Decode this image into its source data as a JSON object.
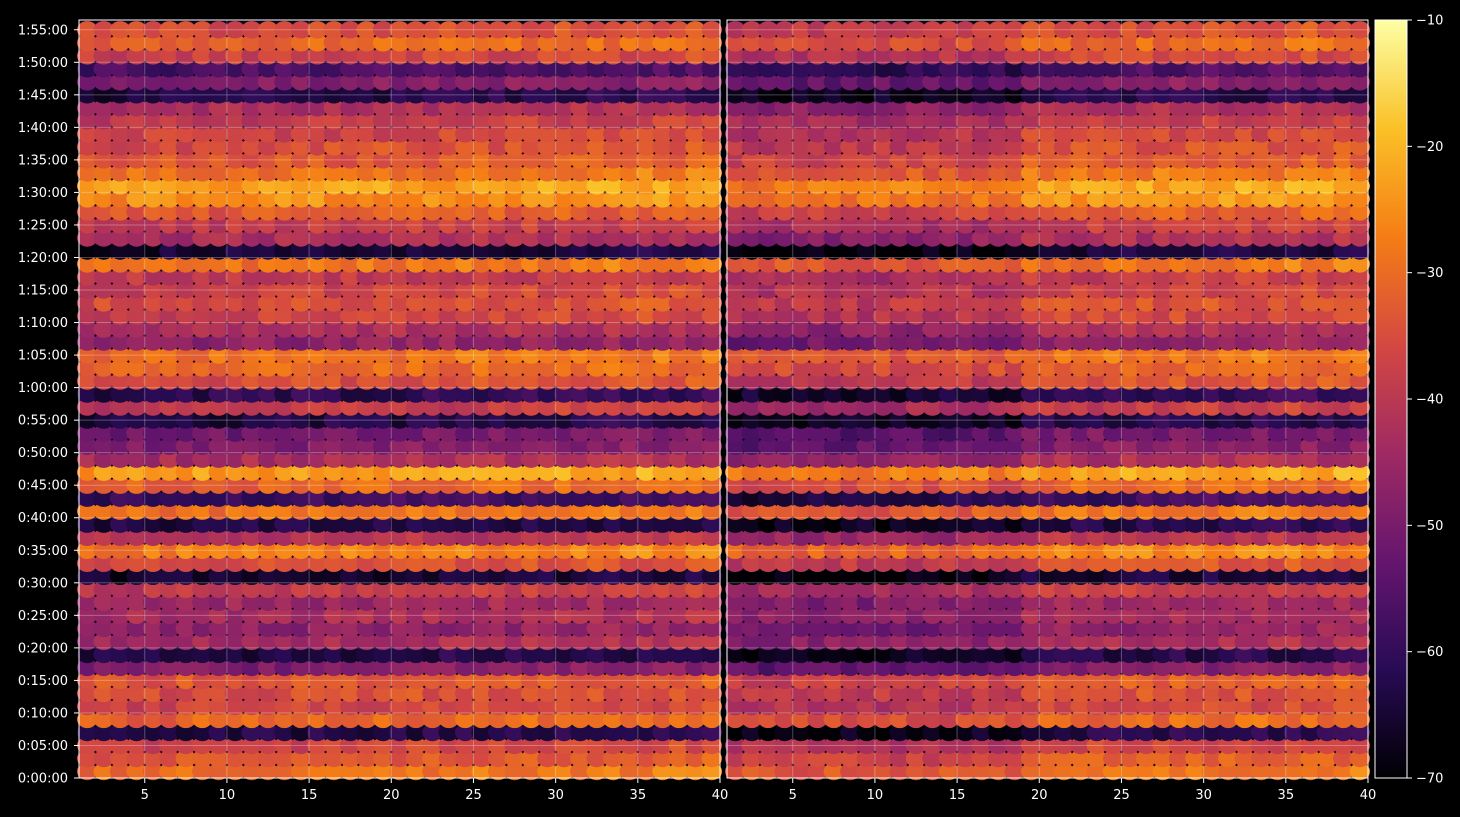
{
  "chart_data": {
    "type": "heatmap",
    "title": "",
    "panels": [
      {
        "name": "",
        "x_ticks": [
          "5",
          "10",
          "15",
          "20",
          "25",
          "30",
          "35",
          "40"
        ],
        "xlim": [
          1,
          40
        ]
      },
      {
        "name": "",
        "x_ticks": [
          "5",
          "10",
          "15",
          "20",
          "25",
          "30",
          "35",
          "40"
        ],
        "xlim": [
          1,
          40
        ]
      }
    ],
    "y_ticks": [
      "0:00:00",
      "0:05:00",
      "0:10:00",
      "0:15:00",
      "0:20:00",
      "0:25:00",
      "0:30:00",
      "0:35:00",
      "0:40:00",
      "0:45:00",
      "0:50:00",
      "0:55:00",
      "1:00:00",
      "1:05:00",
      "1:10:00",
      "1:15:00",
      "1:20:00",
      "1:25:00",
      "1:30:00",
      "1:35:00",
      "1:40:00",
      "1:45:00",
      "1:50:00",
      "1:55:00"
    ],
    "ylim_minutes": [
      0,
      116.5
    ],
    "colorbar": {
      "colormap": "inferno",
      "range": [
        -70,
        -10
      ],
      "ticks": [
        "−70",
        "−60",
        "−50",
        "−40",
        "−30",
        "−20",
        "−10"
      ]
    },
    "grid": true,
    "row_profile_dB": [
      {
        "t_min": 1,
        "value": -30
      },
      {
        "t_min": 3,
        "value": -34
      },
      {
        "t_min": 5,
        "value": -38
      },
      {
        "t_min": 7,
        "value": -64
      },
      {
        "t_min": 9,
        "value": -32
      },
      {
        "t_min": 11,
        "value": -38
      },
      {
        "t_min": 13,
        "value": -36
      },
      {
        "t_min": 15,
        "value": -34
      },
      {
        "t_min": 17,
        "value": -50
      },
      {
        "t_min": 19,
        "value": -64
      },
      {
        "t_min": 21,
        "value": -44
      },
      {
        "t_min": 23,
        "value": -48
      },
      {
        "t_min": 25,
        "value": -44
      },
      {
        "t_min": 27,
        "value": -46
      },
      {
        "t_min": 29,
        "value": -40
      },
      {
        "t_min": 31,
        "value": -66
      },
      {
        "t_min": 33,
        "value": -36
      },
      {
        "t_min": 35,
        "value": -28
      },
      {
        "t_min": 37,
        "value": -42
      },
      {
        "t_min": 39,
        "value": -64
      },
      {
        "t_min": 41,
        "value": -30
      },
      {
        "t_min": 43,
        "value": -60
      },
      {
        "t_min": 45,
        "value": -32
      },
      {
        "t_min": 47,
        "value": -24
      },
      {
        "t_min": 49,
        "value": -44
      },
      {
        "t_min": 51,
        "value": -50
      },
      {
        "t_min": 53,
        "value": -52
      },
      {
        "t_min": 55,
        "value": -64
      },
      {
        "t_min": 57,
        "value": -40
      },
      {
        "t_min": 59,
        "value": -62
      },
      {
        "t_min": 61,
        "value": -36
      },
      {
        "t_min": 63,
        "value": -32
      },
      {
        "t_min": 65,
        "value": -30
      },
      {
        "t_min": 67,
        "value": -48
      },
      {
        "t_min": 69,
        "value": -44
      },
      {
        "t_min": 71,
        "value": -38
      },
      {
        "t_min": 73,
        "value": -36
      },
      {
        "t_min": 75,
        "value": -38
      },
      {
        "t_min": 77,
        "value": -40
      },
      {
        "t_min": 79,
        "value": -30
      },
      {
        "t_min": 81,
        "value": -66
      },
      {
        "t_min": 83,
        "value": -44
      },
      {
        "t_min": 85,
        "value": -40
      },
      {
        "t_min": 87,
        "value": -34
      },
      {
        "t_min": 89,
        "value": -26
      },
      {
        "t_min": 91,
        "value": -24
      },
      {
        "t_min": 93,
        "value": -30
      },
      {
        "t_min": 95,
        "value": -34
      },
      {
        "t_min": 97,
        "value": -36
      },
      {
        "t_min": 99,
        "value": -38
      },
      {
        "t_min": 101,
        "value": -40
      },
      {
        "t_min": 103,
        "value": -44
      },
      {
        "t_min": 105,
        "value": -64
      },
      {
        "t_min": 107,
        "value": -50
      },
      {
        "t_min": 109,
        "value": -58
      },
      {
        "t_min": 111,
        "value": -38
      },
      {
        "t_min": 113,
        "value": -32
      },
      {
        "t_min": 115,
        "value": -36
      }
    ]
  }
}
